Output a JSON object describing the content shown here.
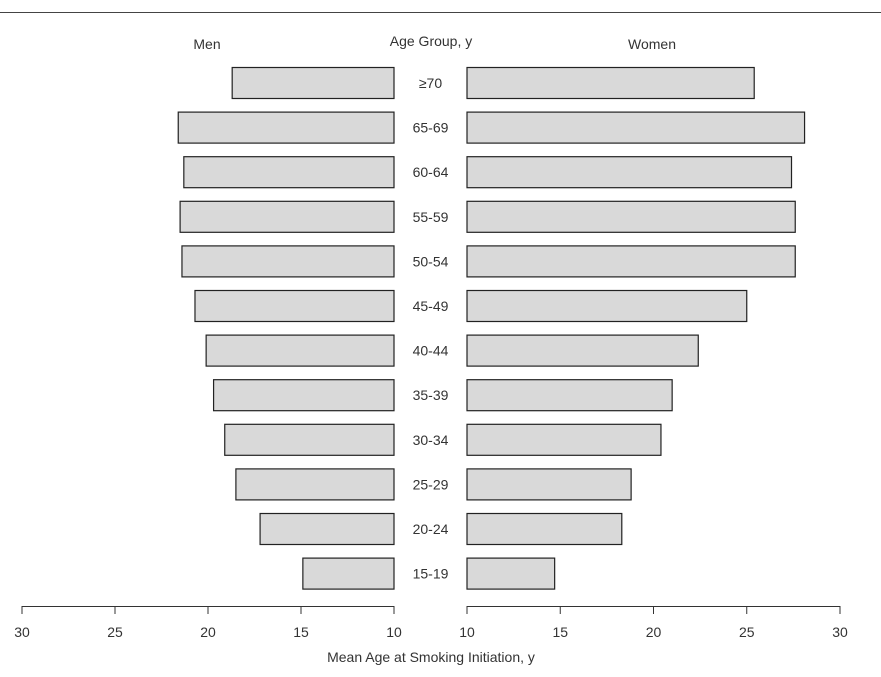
{
  "chart_data": {
    "type": "bar",
    "orientation": "horizontal-butterfly",
    "header_left": "Men",
    "header_center": "Age Group, y",
    "header_right": "Women",
    "xlabel": "Mean Age at Smoking Initiation, y",
    "categories": [
      "≥70",
      "65-69",
      "60-64",
      "55-59",
      "50-54",
      "45-49",
      "40-44",
      "35-39",
      "30-34",
      "25-29",
      "20-24",
      "15-19"
    ],
    "series": [
      {
        "name": "Men",
        "values": [
          18.7,
          21.6,
          21.3,
          21.5,
          21.4,
          20.7,
          20.1,
          19.7,
          19.1,
          18.5,
          17.2,
          14.9
        ]
      },
      {
        "name": "Women",
        "values": [
          25.4,
          28.1,
          27.4,
          27.6,
          27.6,
          25.0,
          22.4,
          21.0,
          20.4,
          18.8,
          18.3,
          14.7
        ]
      }
    ],
    "xlim_left": [
      30,
      10
    ],
    "xlim_right": [
      10,
      30
    ],
    "ticks_left": [
      "30",
      "25",
      "20",
      "15",
      "10"
    ],
    "ticks_right": [
      "10",
      "15",
      "20",
      "25",
      "30"
    ],
    "bar_fill": "#d9d9d9",
    "bar_stroke": "#222222",
    "grid": false
  }
}
